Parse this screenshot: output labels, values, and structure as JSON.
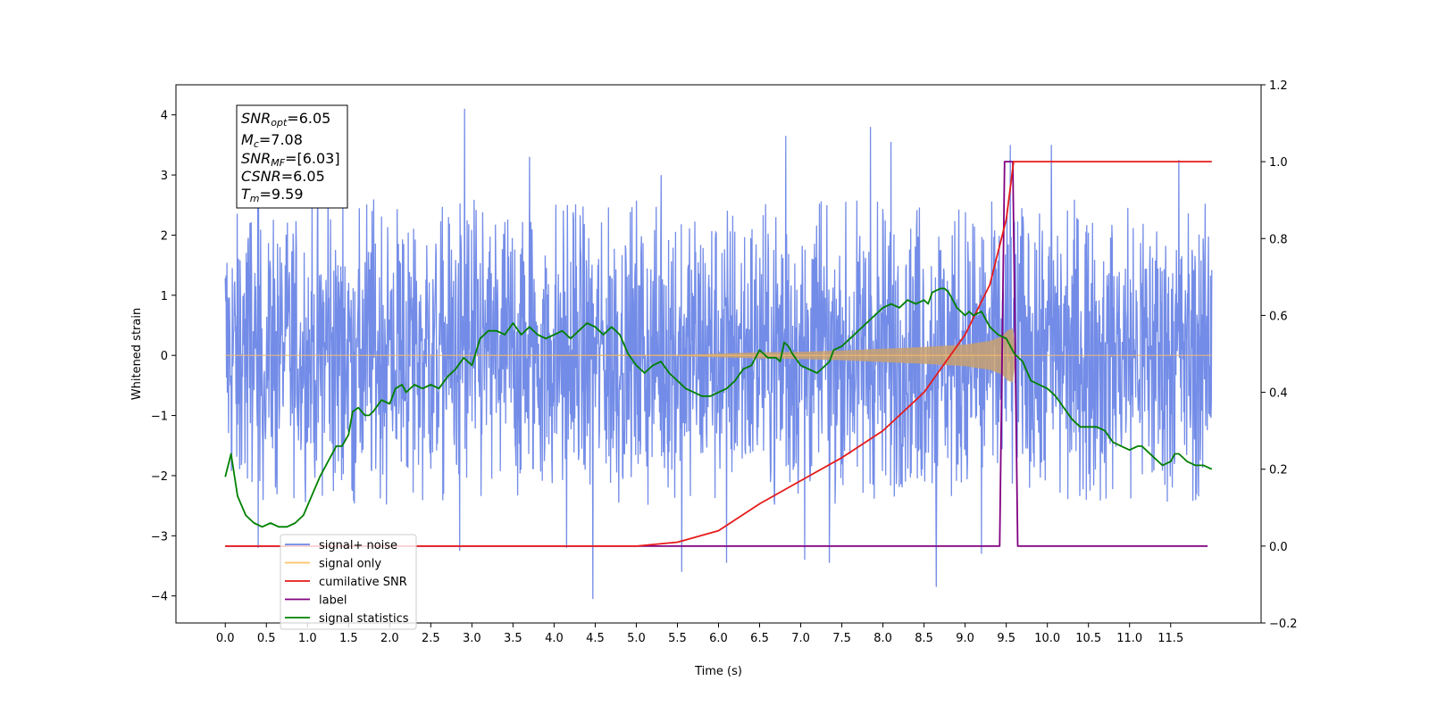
{
  "chart_data": {
    "type": "line",
    "xlabel": "Time (s)",
    "ylabel": "Whitened strain",
    "xlim": [
      -0.6,
      12.6
    ],
    "ylim": [
      -4.45,
      4.5
    ],
    "y2lim": [
      -0.2,
      1.2
    ],
    "x_ticks": [
      0.0,
      0.5,
      1.0,
      1.5,
      2.0,
      2.5,
      3.0,
      3.5,
      4.0,
      4.5,
      5.0,
      5.5,
      6.0,
      6.5,
      7.0,
      7.5,
      8.0,
      8.5,
      9.0,
      9.5,
      10.0,
      10.5,
      11.0,
      11.5
    ],
    "x_tick_labels": [
      "0.0",
      "0.5",
      "1.0",
      "1.5",
      "2.0",
      "2.5",
      "3.0",
      "3.5",
      "4.0",
      "4.5",
      "5.0",
      "5.5",
      "6.0",
      "6.5",
      "7.0",
      "7.5",
      "8.0",
      "8.5",
      "9.0",
      "9.5",
      "10.0",
      "10.5",
      "11.0",
      "11.5"
    ],
    "y_ticks": [
      -4,
      -3,
      -2,
      -1,
      0,
      1,
      2,
      3,
      4
    ],
    "y_tick_labels": [
      "−4",
      "−3",
      "−2",
      "−1",
      "0",
      "1",
      "2",
      "3",
      "4"
    ],
    "y2_ticks": [
      -0.2,
      0.0,
      0.2,
      0.4,
      0.6,
      0.8,
      1.0,
      1.2
    ],
    "y2_tick_labels": [
      "−0.2",
      "0.0",
      "0.2",
      "0.4",
      "0.6",
      "0.8",
      "1.0",
      "1.2"
    ],
    "legend": {
      "placement": "lower-left",
      "entries": [
        {
          "label": "signal+ noise",
          "color": "#6b86e6"
        },
        {
          "label": "signal only",
          "color": "#ffc266"
        },
        {
          "label": "cumilative SNR",
          "color": "#e61a1a"
        },
        {
          "label": "label",
          "color": "#800080"
        },
        {
          "label": "signal statistics",
          "color": "#008000"
        }
      ]
    },
    "annotation": [
      {
        "sym": "SNR",
        "sub": "opt",
        "val": "=6.05"
      },
      {
        "sym": "M",
        "sub": "c",
        "val": "=7.08"
      },
      {
        "sym": "SNR",
        "sub": "MF",
        "val": "=[6.03]"
      },
      {
        "sym": "CSNR",
        "sub": "",
        "val": "=6.05"
      },
      {
        "sym": "T",
        "sub": "m",
        "val": "=9.59"
      }
    ],
    "series": [
      {
        "name": "signal+ noise",
        "axis": "left",
        "color": "#6b86e6",
        "x_range": [
          0.0,
          12.0
        ],
        "typical_range": [
          -1.9,
          2.0
        ],
        "peaks": [
          {
            "x": 2.91,
            "y": 4.1
          },
          {
            "x": 7.85,
            "y": 3.8
          },
          {
            "x": 4.47,
            "y": -4.05
          },
          {
            "x": 8.65,
            "y": -3.85
          },
          {
            "x": 10.05,
            "y": 3.5
          },
          {
            "x": 9.55,
            "y": 3.5
          },
          {
            "x": 6.82,
            "y": 3.65
          },
          {
            "x": 8.1,
            "y": 3.55
          },
          {
            "x": 7.35,
            "y": -3.45
          },
          {
            "x": 5.55,
            "y": -3.6
          },
          {
            "x": 9.2,
            "y": -3.3
          },
          {
            "x": 4.15,
            "y": -3.2
          },
          {
            "x": 0.4,
            "y": -3.2
          },
          {
            "x": 2.85,
            "y": -3.25
          },
          {
            "x": 6.1,
            "y": -3.45
          },
          {
            "x": 7.05,
            "y": -3.4
          },
          {
            "x": 11.6,
            "y": 3.25
          },
          {
            "x": 1.25,
            "y": 3.1
          },
          {
            "x": 3.7,
            "y": 3.3
          },
          {
            "x": 5.3,
            "y": 3.0
          }
        ]
      },
      {
        "name": "signal only",
        "axis": "left",
        "color": "#ffc266",
        "envelope": [
          [
            0.0,
            0.0
          ],
          [
            5.5,
            0.01
          ],
          [
            6.0,
            0.03
          ],
          [
            6.5,
            0.05
          ],
          [
            7.0,
            0.06
          ],
          [
            7.5,
            0.08
          ],
          [
            8.0,
            0.11
          ],
          [
            8.5,
            0.14
          ],
          [
            9.0,
            0.18
          ],
          [
            9.3,
            0.24
          ],
          [
            9.45,
            0.32
          ],
          [
            9.52,
            0.42
          ],
          [
            9.58,
            0.45
          ],
          [
            9.62,
            0.0
          ],
          [
            12.0,
            0.0
          ]
        ]
      },
      {
        "name": "cumilative SNR",
        "axis": "right",
        "color": "#e61a1a",
        "x": [
          0.0,
          5.0,
          5.5,
          6.0,
          6.5,
          7.0,
          7.5,
          8.0,
          8.5,
          9.0,
          9.3,
          9.5,
          9.59,
          12.0
        ],
        "y": [
          0.0,
          0.0,
          0.01,
          0.04,
          0.11,
          0.17,
          0.23,
          0.3,
          0.4,
          0.55,
          0.68,
          0.85,
          1.0,
          1.0
        ]
      },
      {
        "name": "label",
        "axis": "right",
        "color": "#800080",
        "x": [
          0.0,
          9.42,
          9.48,
          9.58,
          9.64,
          11.95
        ],
        "y": [
          0.0,
          0.0,
          1.0,
          1.0,
          0.0,
          0.0
        ]
      },
      {
        "name": "signal statistics",
        "axis": "right",
        "color": "#008000",
        "x": [
          0.0,
          0.07,
          0.15,
          0.25,
          0.35,
          0.45,
          0.55,
          0.65,
          0.75,
          0.85,
          0.95,
          1.05,
          1.15,
          1.25,
          1.35,
          1.42,
          1.5,
          1.55,
          1.62,
          1.7,
          1.75,
          1.8,
          1.9,
          2.0,
          2.07,
          2.15,
          2.2,
          2.3,
          2.4,
          2.5,
          2.6,
          2.7,
          2.8,
          2.9,
          3.0,
          3.1,
          3.2,
          3.3,
          3.4,
          3.5,
          3.6,
          3.7,
          3.8,
          3.9,
          4.0,
          4.1,
          4.2,
          4.3,
          4.4,
          4.5,
          4.6,
          4.7,
          4.8,
          4.9,
          5.0,
          5.1,
          5.2,
          5.3,
          5.4,
          5.5,
          5.6,
          5.7,
          5.8,
          5.9,
          6.0,
          6.1,
          6.2,
          6.3,
          6.4,
          6.5,
          6.55,
          6.6,
          6.7,
          6.75,
          6.8,
          6.85,
          6.9,
          7.0,
          7.1,
          7.2,
          7.3,
          7.35,
          7.4,
          7.5,
          7.6,
          7.7,
          7.8,
          7.9,
          8.0,
          8.1,
          8.2,
          8.3,
          8.4,
          8.5,
          8.55,
          8.6,
          8.7,
          8.75,
          8.8,
          8.9,
          9.0,
          9.05,
          9.1,
          9.2,
          9.3,
          9.4,
          9.5,
          9.6,
          9.7,
          9.8,
          9.9,
          10.0,
          10.1,
          10.2,
          10.3,
          10.4,
          10.5,
          10.6,
          10.7,
          10.8,
          10.9,
          11.0,
          11.1,
          11.15,
          11.2,
          11.3,
          11.4,
          11.5,
          11.55,
          11.6,
          11.7,
          11.8,
          11.9,
          12.0
        ],
        "y": [
          0.18,
          0.24,
          0.13,
          0.08,
          0.06,
          0.05,
          0.06,
          0.05,
          0.05,
          0.06,
          0.08,
          0.13,
          0.18,
          0.22,
          0.26,
          0.26,
          0.29,
          0.35,
          0.36,
          0.34,
          0.34,
          0.35,
          0.38,
          0.37,
          0.41,
          0.42,
          0.4,
          0.42,
          0.41,
          0.42,
          0.41,
          0.44,
          0.46,
          0.49,
          0.47,
          0.54,
          0.56,
          0.56,
          0.55,
          0.58,
          0.55,
          0.57,
          0.55,
          0.54,
          0.55,
          0.56,
          0.54,
          0.56,
          0.58,
          0.57,
          0.55,
          0.57,
          0.55,
          0.5,
          0.47,
          0.45,
          0.47,
          0.48,
          0.45,
          0.43,
          0.41,
          0.4,
          0.39,
          0.39,
          0.4,
          0.41,
          0.43,
          0.46,
          0.47,
          0.51,
          0.5,
          0.49,
          0.49,
          0.48,
          0.53,
          0.52,
          0.5,
          0.47,
          0.46,
          0.45,
          0.47,
          0.48,
          0.51,
          0.52,
          0.54,
          0.56,
          0.58,
          0.6,
          0.62,
          0.63,
          0.62,
          0.64,
          0.63,
          0.64,
          0.63,
          0.66,
          0.67,
          0.67,
          0.66,
          0.62,
          0.6,
          0.61,
          0.6,
          0.61,
          0.57,
          0.55,
          0.54,
          0.5,
          0.48,
          0.43,
          0.42,
          0.41,
          0.39,
          0.36,
          0.33,
          0.31,
          0.31,
          0.31,
          0.3,
          0.27,
          0.26,
          0.25,
          0.26,
          0.26,
          0.25,
          0.23,
          0.21,
          0.22,
          0.24,
          0.24,
          0.22,
          0.21,
          0.21,
          0.2
        ]
      }
    ]
  }
}
